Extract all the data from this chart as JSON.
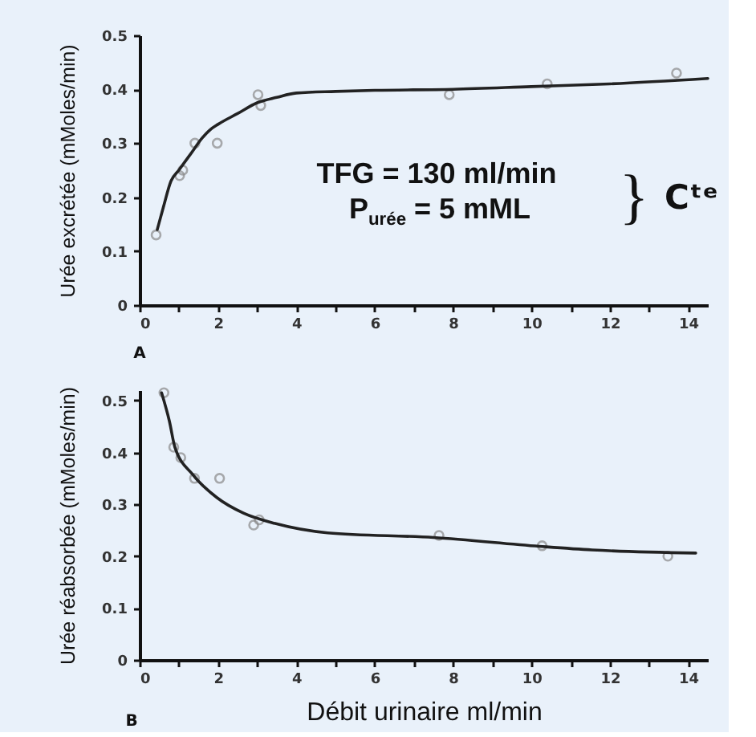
{
  "chart_data": [
    {
      "type": "scatter",
      "ylabel": "Urée excrétée (mMoles/min)",
      "xlim": [
        0,
        14.5
      ],
      "xticks": [
        0,
        {
          "value": 1,
          "label": null
        },
        2,
        {
          "value": 3,
          "label": null
        },
        4,
        {
          "value": 5,
          "label": null
        },
        6,
        {
          "value": 7,
          "label": null
        },
        8,
        {
          "value": 9,
          "label": null
        },
        10,
        {
          "value": 11,
          "label": null
        },
        12,
        {
          "value": 13,
          "label": null
        },
        14
      ],
      "ylim": [
        0,
        0.5
      ],
      "yticks": [
        0,
        0.1,
        0.2,
        0.3,
        0.4,
        0.5
      ],
      "annotations": [
        "A",
        "TFG = 130 ml/min",
        "P$_{urée}$ = 5 mML",
        "}",
        "Cᵗᵉ"
      ],
      "series": [
        {
          "marker": "circle",
          "color": "#8a8a8a",
          "x": [
            0.42,
            1.02,
            1.1,
            1.41,
            1.98,
            3.02,
            3.09,
            7.9,
            10.4,
            13.7
          ],
          "values": [
            0.13,
            0.24,
            0.25,
            0.3,
            0.3,
            0.39,
            0.37,
            0.39,
            0.41,
            0.43
          ]
        },
        {
          "type": "line",
          "color": "#222222",
          "x": [
            0.45,
            0.6,
            0.8,
            1.0,
            1.3,
            1.6,
            1.8,
            2.0,
            2.5,
            3.0,
            3.5,
            4.0,
            5.0,
            6.0,
            8.0,
            10.0,
            12.0,
            14.5
          ],
          "values": [
            0.14,
            0.18,
            0.23,
            0.25,
            0.28,
            0.31,
            0.325,
            0.335,
            0.355,
            0.375,
            0.385,
            0.393,
            0.396,
            0.398,
            0.4,
            0.405,
            0.41,
            0.42
          ]
        }
      ]
    },
    {
      "type": "scatter",
      "xlabel": "Débit urinaire ml/min",
      "ylabel": "Urée réabsorbée (mMoles/min)",
      "xlim": [
        0,
        14.5
      ],
      "xticks": [
        0,
        {
          "value": 1,
          "label": null
        },
        2,
        {
          "value": 3,
          "label": null
        },
        4,
        {
          "value": 5,
          "label": null
        },
        6,
        {
          "value": 7,
          "label": null
        },
        8,
        {
          "value": 9,
          "label": null
        },
        10,
        {
          "value": 11,
          "label": null
        },
        12,
        {
          "value": 13,
          "label": null
        },
        14
      ],
      "ylim": [
        0,
        0.52
      ],
      "yticks": [
        0,
        0.1,
        0.2,
        0.3,
        0.4,
        0.5
      ],
      "annotations": [
        "B"
      ],
      "series": [
        {
          "marker": "circle",
          "color": "#8a8a8a",
          "x": [
            0.62,
            0.87,
            1.05,
            1.4,
            2.04,
            2.91,
            3.05,
            7.64,
            10.27,
            13.48
          ],
          "values": [
            0.515,
            0.41,
            0.39,
            0.35,
            0.35,
            0.26,
            0.27,
            0.24,
            0.22,
            0.2
          ]
        },
        {
          "type": "line",
          "color": "#222222",
          "x": [
            0.56,
            0.76,
            0.9,
            1.36,
            1.97,
            2.65,
            3.46,
            4.8,
            7.5,
            10.2,
            11.55,
            14.19
          ],
          "values": [
            0.515,
            0.46,
            0.41,
            0.357,
            0.313,
            0.283,
            0.263,
            0.245,
            0.236,
            0.219,
            0.212,
            0.206
          ]
        }
      ]
    }
  ]
}
